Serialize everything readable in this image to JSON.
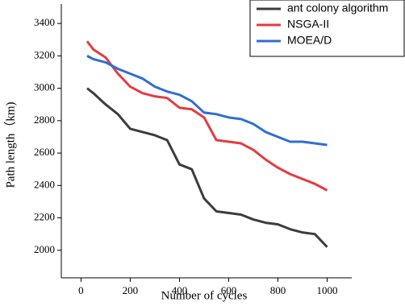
{
  "chart_data": {
    "type": "line",
    "x_label": "Number of cycles",
    "y_label": "Path length（km)",
    "x": [
      25,
      50,
      100,
      150,
      200,
      250,
      300,
      350,
      400,
      450,
      500,
      550,
      600,
      650,
      700,
      750,
      800,
      850,
      900,
      950,
      1000
    ],
    "series": [
      {
        "name": "ant colony algorithm",
        "color": "#3c3c3c",
        "values": [
          3000,
          2970,
          2900,
          2840,
          2750,
          2730,
          2710,
          2680,
          2530,
          2500,
          2320,
          2240,
          2230,
          2220,
          2190,
          2170,
          2160,
          2130,
          2110,
          2100,
          2020
        ]
      },
      {
        "name": "NSGA-II",
        "color": "#e53b3f",
        "values": [
          3290,
          3240,
          3190,
          3090,
          3010,
          2970,
          2950,
          2940,
          2880,
          2870,
          2820,
          2680,
          2670,
          2660,
          2620,
          2560,
          2510,
          2470,
          2440,
          2410,
          2370
        ]
      },
      {
        "name": "MOEA/D",
        "color": "#2f6fd2",
        "values": [
          3200,
          3180,
          3160,
          3120,
          3090,
          3060,
          3010,
          2980,
          2960,
          2920,
          2850,
          2840,
          2820,
          2810,
          2780,
          2730,
          2700,
          2670,
          2670,
          2660,
          2650
        ]
      }
    ],
    "xlim": [
      -80,
      1100
    ],
    "ylim": [
      1830,
      3520
    ],
    "xticks": [
      0,
      200,
      400,
      600,
      800,
      1000
    ],
    "yticks": [
      2000,
      2200,
      2400,
      2600,
      2800,
      3000,
      3200,
      3400
    ],
    "legend": "top-right"
  }
}
